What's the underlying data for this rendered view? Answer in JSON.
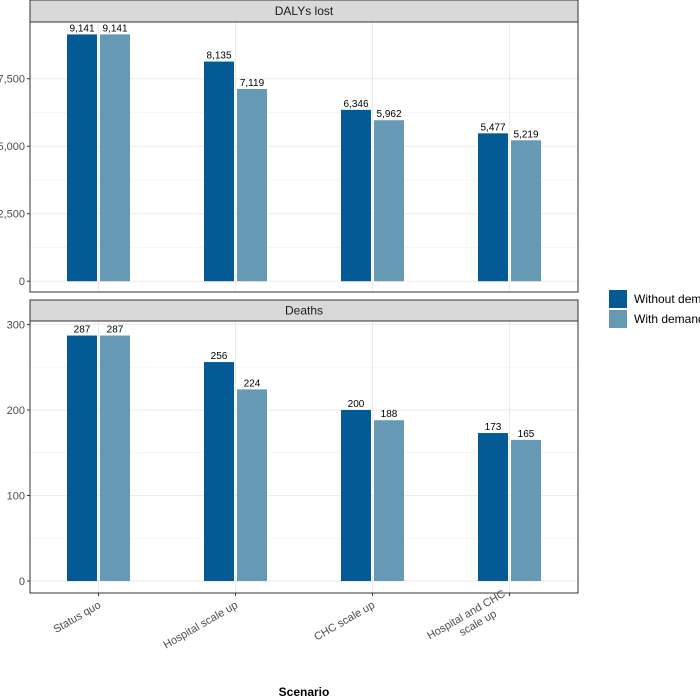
{
  "chart_data": {
    "type": "bar",
    "categories": [
      "Status quo",
      "Hospital scale up",
      "CHC scale up",
      "Hospital and CHC scale up"
    ],
    "category_lines": [
      [
        "Status quo"
      ],
      [
        "Hospital scale up"
      ],
      [
        "CHC scale up"
      ],
      [
        "Hospital and CHC",
        "scale up"
      ]
    ],
    "xlabel": "Scenario",
    "legend_position": "right",
    "grid": true,
    "series_names": [
      "Without demand",
      "With demand"
    ],
    "colors": [
      "#035A94",
      "#6699B3"
    ],
    "panels": [
      {
        "title": "DALYs lost",
        "ylim": [
          -400,
          9600
        ],
        "yticks": [
          0,
          2500,
          5000,
          7500
        ],
        "ytick_labels": [
          "0",
          "2,500",
          "5,000",
          "7,500"
        ],
        "series": [
          {
            "name": "Without demand",
            "values": [
              9141,
              8135,
              6346,
              5477
            ],
            "labels": [
              "9,141",
              "8,135",
              "6,346",
              "5,477"
            ]
          },
          {
            "name": "With demand",
            "values": [
              9141,
              7119,
              5962,
              5219
            ],
            "labels": [
              "9,141",
              "7,119",
              "5,962",
              "5,219"
            ]
          }
        ]
      },
      {
        "title": "Deaths",
        "ylim": [
          -14,
          304
        ],
        "yticks": [
          0,
          100,
          200,
          300
        ],
        "ytick_labels": [
          "0",
          "100",
          "200",
          "300"
        ],
        "series": [
          {
            "name": "Without demand",
            "values": [
              287,
              256,
              200,
              173
            ],
            "labels": [
              "287",
              "256",
              "200",
              "173"
            ]
          },
          {
            "name": "With demand",
            "values": [
              287,
              224,
              188,
              165
            ],
            "labels": [
              "287",
              "224",
              "188",
              "165"
            ]
          }
        ]
      }
    ]
  }
}
